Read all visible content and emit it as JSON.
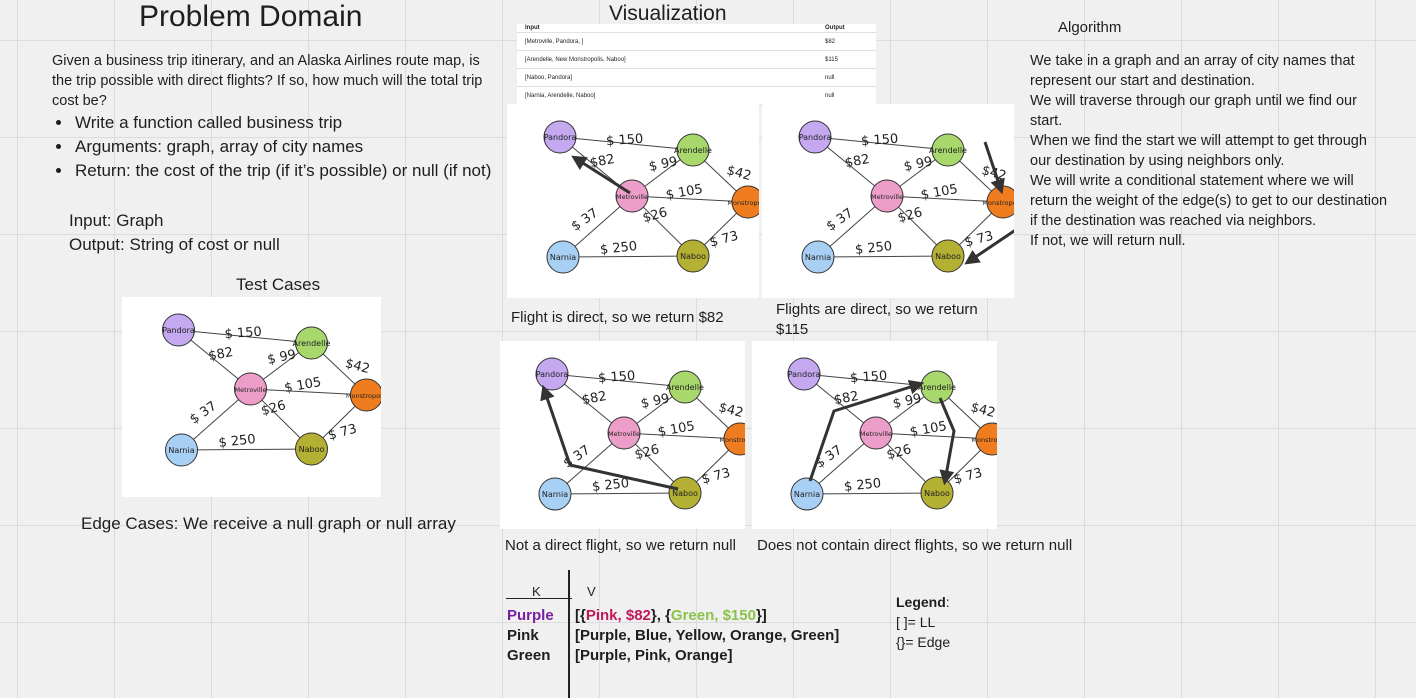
{
  "left": {
    "title": "Problem Domain",
    "description": "Given a business trip itinerary, and an Alaska Airlines route map, is the trip possible with direct flights? If so, how much will the total trip cost be?",
    "bullets": [
      "Write a function called business trip",
      "Arguments: graph, array of city names",
      "Return: the cost of the trip (if it’s possible) or null (if not)"
    ],
    "input": "Input: Graph",
    "output": "Output: String of cost or null",
    "test_cases_title": "Test Cases",
    "edge_cases": "Edge Cases: We receive a null graph or null array"
  },
  "visualization": {
    "title": "Visualization",
    "table": {
      "headers": [
        "Input",
        "Output"
      ],
      "rows": [
        [
          "[Metroville, Pandora, ]",
          "$82"
        ],
        [
          "[Arendelle, New Monstropolis, Naboo]",
          "$115"
        ],
        [
          "[Naboo, Pandora]",
          "null"
        ],
        [
          "[Narnia, Arendelle, Naboo]",
          "null"
        ]
      ]
    },
    "captions": [
      "Flight is direct, so we return $82",
      "Flights are direct, so we return $115",
      "Not a direct flight, so we return null",
      "Does not contain direct flights, so we return null"
    ]
  },
  "graph": {
    "nodes": [
      {
        "id": "pandora",
        "label": "Pandora",
        "color": "#c4a8f0"
      },
      {
        "id": "arendelle",
        "label": "Arendelle",
        "color": "#a8d86c"
      },
      {
        "id": "metroville",
        "label": "Metroville",
        "color": "#ec9ec8"
      },
      {
        "id": "monstropolis",
        "label": "Monstropolis",
        "color": "#f07c20"
      },
      {
        "id": "narnia",
        "label": "Narnia",
        "color": "#a8d0f4"
      },
      {
        "id": "naboo",
        "label": "Naboo",
        "color": "#b4b034"
      }
    ],
    "edges": [
      {
        "from": "pandora",
        "to": "arendelle",
        "label": "$ 150"
      },
      {
        "from": "pandora",
        "to": "metroville",
        "label": "$82"
      },
      {
        "from": "arendelle",
        "to": "metroville",
        "label": "$ 99"
      },
      {
        "from": "arendelle",
        "to": "monstropolis",
        "label": "$42"
      },
      {
        "from": "metroville",
        "to": "monstropolis",
        "label": "$ 105"
      },
      {
        "from": "metroville",
        "to": "narnia",
        "label": "$ 37"
      },
      {
        "from": "metroville",
        "to": "naboo",
        "label": "$26"
      },
      {
        "from": "monstropolis",
        "to": "naboo",
        "label": "$ 73"
      },
      {
        "from": "narnia",
        "to": "naboo",
        "label": "$ 250"
      }
    ]
  },
  "algorithm": {
    "title": "Algorithm",
    "lines": [
      "We take in a graph and an array of city names that represent our start and destination.",
      "We will traverse through our graph until we find our start.",
      "When we find the start we will attempt to get through our destination by using neighbors only.",
      "We will write a conditional statement where we will return the weight of the edge(s) to get to our destination if the destination was reached via neighbors.",
      "If not, we will return null."
    ]
  },
  "kv_table": {
    "headers": [
      "K",
      "V"
    ],
    "rows": [
      {
        "key": "Purple",
        "key_color": "#7a1fa2",
        "parts": [
          {
            "text": "[{",
            "color": "#1e1e1e"
          },
          {
            "text": "Pink, $82",
            "color": "#c2185b"
          },
          {
            "text": "}, {",
            "color": "#1e1e1e"
          },
          {
            "text": "Green, $150",
            "color": "#8bc34a"
          },
          {
            "text": "}]",
            "color": "#1e1e1e"
          }
        ]
      },
      {
        "key": "Pink",
        "key_color": "#1e1e1e",
        "parts": [
          {
            "text": "[Purple, Blue, Yellow, Orange, Green]",
            "color": "#1e1e1e"
          }
        ]
      },
      {
        "key": "Green",
        "key_color": "#1e1e1e",
        "parts": [
          {
            "text": "[Purple, Pink, Orange]",
            "color": "#1e1e1e"
          }
        ]
      }
    ]
  },
  "legend": {
    "title": "Legend",
    "colon": ":",
    "items": [
      "[ ]= LL",
      "{}= Edge"
    ]
  }
}
